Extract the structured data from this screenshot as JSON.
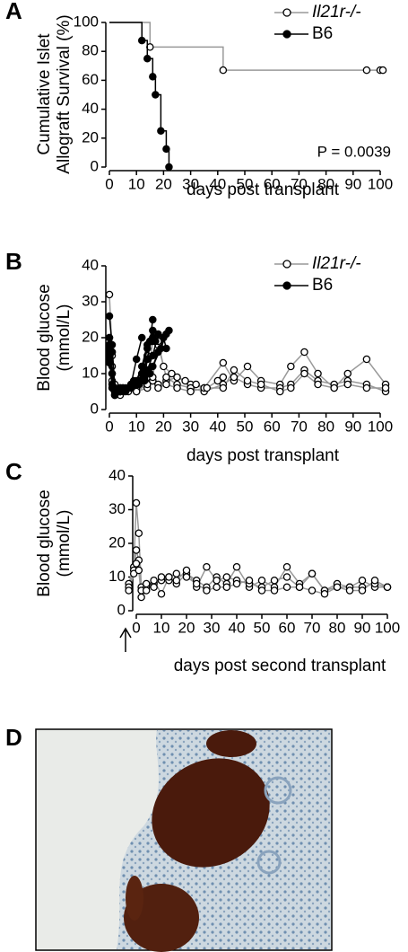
{
  "panels": [
    "A",
    "B",
    "C",
    "D"
  ],
  "chart_data": [
    {
      "type": "step",
      "ylabel": [
        "Cumulative Islet",
        "Allograft Survival (%)"
      ],
      "xlabel": "days post transplant",
      "annotation": "P = 0.0039",
      "xlim": [
        0,
        100
      ],
      "xticks": [
        0,
        10,
        20,
        30,
        40,
        50,
        60,
        70,
        80,
        90,
        100
      ],
      "ylim": [
        0,
        100
      ],
      "yticks": [
        0,
        20,
        40,
        60,
        80,
        100
      ],
      "legend": "upper right",
      "series": [
        {
          "name": "Il21r-/-",
          "color": "#999999",
          "fill": "#ffffff",
          "edgecolor": "#000000",
          "x": [
            0,
            15,
            42,
            95,
            100,
            101
          ],
          "values": [
            100,
            83,
            67,
            67,
            67,
            67
          ]
        },
        {
          "name": "B6",
          "color": "#000000",
          "fill": "#000000",
          "edgecolor": "#000000",
          "x": [
            0,
            12,
            14,
            16,
            17,
            19,
            21,
            22
          ],
          "values": [
            100,
            87.5,
            75,
            62.5,
            50,
            25,
            12.5,
            0
          ]
        }
      ]
    },
    {
      "type": "line",
      "ylabel": [
        "Blood glucose",
        "(mmol/L)"
      ],
      "xlabel": "days post transplant",
      "xlim": [
        0,
        100
      ],
      "xticks": [
        0,
        10,
        20,
        30,
        40,
        50,
        60,
        70,
        80,
        90,
        100
      ],
      "ylim": [
        0,
        40
      ],
      "yticks": [
        0,
        10,
        20,
        30,
        40
      ],
      "legend": "upper right",
      "series": [
        {
          "name": "Il21r-/-",
          "color": "#999999",
          "fill": "#ffffff",
          "edgecolor": "#000000",
          "mice": [
            {
              "x": [
                0,
                1,
                2,
                4,
                7,
                10,
                14,
                16,
                18,
                21,
                25,
                30,
                35,
                42,
                46,
                51,
                56,
                63,
                67,
                72,
                77,
                83,
                88,
                95,
                102
              ],
              "values": [
                32,
                16,
                6,
                5,
                6,
                7,
                9,
                8,
                7,
                8,
                9,
                7,
                6,
                13,
                8,
                12,
                8,
                7,
                12,
                16,
                10,
                6,
                10,
                14,
                7
              ]
            },
            {
              "x": [
                0,
                1,
                2,
                4,
                7,
                10,
                14,
                16,
                18,
                21,
                25,
                30,
                35,
                42,
                46,
                51,
                56,
                63,
                67,
                72,
                77,
                83,
                88,
                95,
                102
              ],
              "values": [
                20,
                12,
                5,
                6,
                5,
                6,
                7,
                19,
                18,
                9,
                7,
                6,
                5,
                7,
                9,
                7,
                6,
                6,
                7,
                11,
                8,
                7,
                8,
                7,
                5
              ]
            },
            {
              "x": [
                0,
                1,
                2,
                4,
                7,
                10,
                14,
                16,
                18,
                21,
                25,
                30,
                35,
                42,
                46,
                51,
                56,
                63,
                67,
                72,
                77,
                83,
                88,
                95,
                102
              ],
              "values": [
                18,
                15,
                7,
                5,
                6,
                5,
                6,
                8,
                6,
                7,
                6,
                5,
                6,
                6,
                11,
                8,
                7,
                5,
                6,
                10,
                7,
                6,
                7,
                6,
                6
              ]
            },
            {
              "x": [
                0,
                1,
                2,
                4,
                7,
                10,
                14,
                16,
                18,
                20,
                23,
                28,
                32,
                36,
                40,
                42
              ],
              "values": [
                17,
                8,
                5,
                4,
                6,
                5,
                7,
                9,
                19,
                12,
                10,
                8,
                7,
                6,
                8,
                9
              ]
            },
            {
              "x": [
                0,
                1,
                2,
                4,
                7,
                10,
                12,
                14,
                15
              ],
              "values": [
                16,
                10,
                6,
                5,
                6,
                7,
                10,
                15,
                19
              ]
            }
          ]
        },
        {
          "name": "B6",
          "color": "#000000",
          "fill": "#000000",
          "edgecolor": "#000000",
          "mice": [
            {
              "x": [
                0,
                1,
                2,
                4,
                6,
                8,
                10,
                12
              ],
              "values": [
                26,
                18,
                6,
                5,
                6,
                7,
                14,
                20
              ]
            },
            {
              "x": [
                0,
                1,
                2,
                4,
                6,
                8,
                10,
                12,
                14
              ],
              "values": [
                20,
                16,
                5,
                6,
                5,
                7,
                8,
                12,
                18
              ]
            },
            {
              "x": [
                0,
                1,
                2,
                4,
                7,
                9,
                12,
                14,
                16
              ],
              "values": [
                18,
                10,
                4,
                5,
                6,
                8,
                10,
                17,
                20
              ]
            },
            {
              "x": [
                0,
                1,
                2,
                4,
                7,
                10,
                13,
                15,
                16
              ],
              "values": [
                16,
                7,
                5,
                5,
                6,
                7,
                9,
                19,
                25
              ]
            },
            {
              "x": [
                0,
                1,
                2,
                5,
                8,
                11,
                14,
                16,
                17
              ],
              "values": [
                15,
                6,
                4,
                6,
                7,
                8,
                14,
                22,
                19
              ]
            },
            {
              "x": [
                0,
                2,
                5,
                8,
                11,
                14,
                16,
                18
              ],
              "values": [
                17,
                5,
                6,
                6,
                7,
                11,
                15,
                21
              ]
            },
            {
              "x": [
                0,
                2,
                5,
                8,
                12,
                15,
                18,
                20,
                21
              ],
              "values": [
                14,
                5,
                5,
                6,
                8,
                10,
                16,
                20,
                17
              ]
            },
            {
              "x": [
                0,
                2,
                5,
                9,
                13,
                16,
                19,
                21,
                22
              ],
              "values": [
                13,
                4,
                5,
                7,
                8,
                12,
                17,
                21,
                22
              ]
            }
          ]
        }
      ]
    },
    {
      "type": "line",
      "ylabel": [
        "Blood glucose",
        "(mmol/L)"
      ],
      "xlabel": "days post second transplant",
      "xlim": [
        0,
        100
      ],
      "xticks": [
        0,
        10,
        20,
        30,
        40,
        50,
        60,
        70,
        80,
        90,
        100
      ],
      "ylim": [
        0,
        40
      ],
      "yticks": [
        0,
        10,
        20,
        30,
        40
      ],
      "series": [
        {
          "color": "#999999",
          "fill": "#ffffff",
          "edgecolor": "#000000",
          "mice": [
            {
              "x": [
                -3,
                -1,
                0,
                1,
                2,
                4,
                7,
                10,
                13,
                16,
                20,
                24,
                28,
                32,
                36,
                40,
                45,
                50,
                55,
                60,
                65,
                70,
                75,
                80,
                85,
                90,
                95,
                100
              ],
              "values": [
                8,
                13,
                32,
                23,
                7,
                7,
                8,
                9,
                10,
                8,
                11,
                9,
                7,
                10,
                8,
                13,
                7,
                9,
                7,
                13,
                8,
                11,
                6,
                7,
                7,
                9,
                7,
                7
              ]
            },
            {
              "x": [
                -3,
                -1,
                0,
                1,
                2,
                4,
                7,
                10,
                13,
                16,
                20,
                24,
                28,
                32,
                36,
                40,
                45,
                50,
                55,
                60,
                65,
                70,
                75,
                80,
                85,
                90,
                95,
                100
              ],
              "values": [
                7,
                12,
                18,
                15,
                6,
                8,
                7,
                10,
                9,
                9,
                12,
                7,
                13,
                9,
                10,
                9,
                8,
                7,
                9,
                10,
                7,
                11,
                6,
                8,
                7,
                7,
                8,
                7
              ]
            },
            {
              "x": [
                -3,
                -1,
                0,
                1,
                2,
                4,
                7,
                10,
                13,
                16,
                20,
                24,
                28,
                32,
                36,
                40,
                45,
                50,
                55,
                60,
                65,
                70,
                75,
                80,
                85,
                90,
                95,
                100
              ],
              "values": [
                6,
                11,
                14,
                12,
                4,
                6,
                9,
                5,
                10,
                11,
                10,
                8,
                6,
                7,
                7,
                8,
                9,
                6,
                6,
                7,
                7,
                6,
                5,
                7,
                6,
                6,
                9,
                7
              ]
            }
          ]
        }
      ]
    }
  ]
}
